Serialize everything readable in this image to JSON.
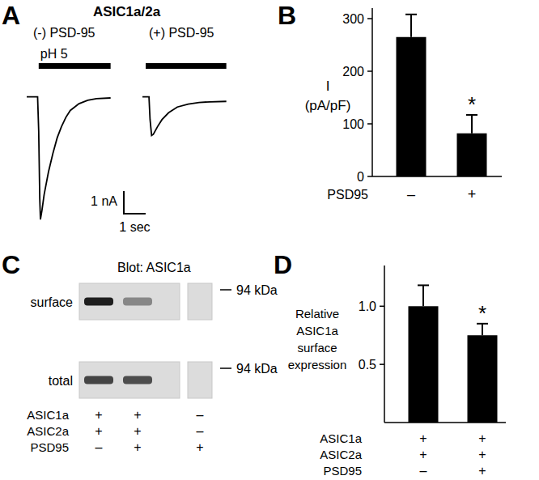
{
  "chart_data": [
    {
      "type": "trace",
      "panel": "A",
      "title": "ASIC1a/2a",
      "xlim": [
        0,
        3.9
      ],
      "ylim": [
        -5.5,
        0.2
      ],
      "tick_labels": false,
      "series": [
        {
          "name": "(-) PSD-95",
          "color": "#000000",
          "x": [
            0,
            0.5,
            0.55,
            0.6,
            0.63,
            0.7,
            0.8,
            1.0,
            1.2,
            1.4,
            1.6,
            1.8,
            2.0,
            2.4,
            2.8,
            3.2,
            3.85
          ],
          "values": [
            0,
            0,
            -1.5,
            -4.5,
            -5.4,
            -5.0,
            -4.3,
            -3.3,
            -2.5,
            -1.8,
            -1.3,
            -0.9,
            -0.6,
            -0.3,
            -0.15,
            -0.08,
            -0.05
          ],
          "stimulus": [
            0.55,
            3.85
          ]
        },
        {
          "name": "(+) PSD-95",
          "color": "#000000",
          "x": [
            0,
            0.3,
            0.35,
            0.42,
            0.5,
            0.7,
            0.9,
            1.2,
            1.6,
            2.1,
            2.6,
            3.1,
            3.85
          ],
          "values": [
            0,
            0,
            -1.0,
            -1.7,
            -1.65,
            -1.3,
            -1.0,
            -0.7,
            -0.45,
            -0.32,
            -0.25,
            -0.22,
            -0.2
          ],
          "stimulus": [
            0.15,
            3.85
          ]
        }
      ],
      "stimulus_label": "pH 5",
      "scale_bar": {
        "y": 1,
        "y_label": "1 nA",
        "x": 1,
        "x_label": "1 sec"
      }
    },
    {
      "type": "bar",
      "panel": "B",
      "y_label": [
        "I",
        "(pA/pF)"
      ],
      "x_label": "PSD95",
      "categories": [
        "–",
        "+"
      ],
      "values": [
        265,
        82
      ],
      "errors": [
        43,
        35
      ],
      "color": "#000000",
      "ylim": [
        0,
        320
      ],
      "yticks": [
        0,
        100,
        200,
        300
      ],
      "annotations": [
        {
          "text": "*",
          "category": 1
        }
      ]
    },
    {
      "type": "blot",
      "panel": "C",
      "title": "Blot: ASIC1a",
      "rows": [
        "surface",
        "total"
      ],
      "bands": [
        [
          1.0,
          0.45,
          0
        ],
        [
          0.8,
          0.75,
          0
        ]
      ],
      "ladder": "94 kDa",
      "conditions": [
        {
          "label": "ASIC1a",
          "values": [
            "+",
            "+",
            "–"
          ]
        },
        {
          "label": "ASIC2a",
          "values": [
            "+",
            "+",
            "–"
          ]
        },
        {
          "label": "PSD95",
          "values": [
            "–",
            "+",
            "+"
          ]
        }
      ]
    },
    {
      "type": "bar",
      "panel": "D",
      "y_label": [
        "Relative",
        "ASIC1a",
        "surface",
        "expression"
      ],
      "categories": [
        null,
        null
      ],
      "values": [
        1,
        0.75
      ],
      "errors": [
        0.18,
        0.1
      ],
      "color": "#000000",
      "ylim": [
        0,
        1.35
      ],
      "yticks": [
        0.5,
        {
          "value": 1,
          "label": "1.0"
        }
      ],
      "annotations": [
        {
          "text": "*",
          "category": 1
        }
      ],
      "conditions": [
        {
          "label": "ASIC1a",
          "values": [
            "+",
            "+"
          ]
        },
        {
          "label": "ASIC2a",
          "values": [
            "+",
            "+"
          ]
        },
        {
          "label": "PSD95",
          "values": [
            "–",
            "+"
          ]
        }
      ]
    }
  ]
}
